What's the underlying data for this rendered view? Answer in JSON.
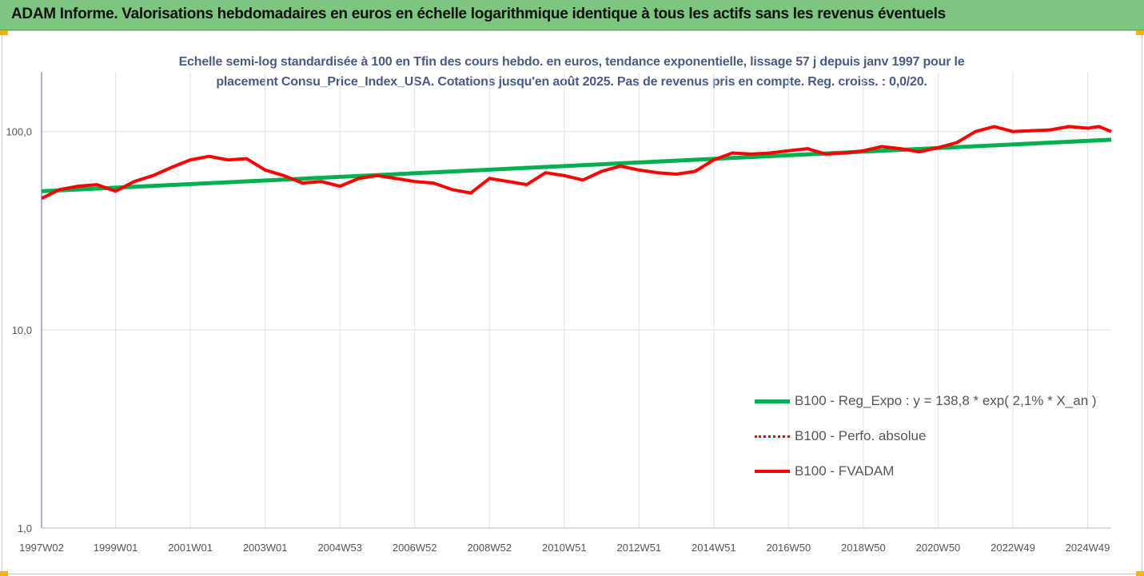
{
  "banner": {
    "title": "ADAM Informe. Valorisations hebdomadaires en euros en échelle logarithmique identique à tous les actifs sans les revenus éventuels"
  },
  "colors": {
    "banner": "#7dc67f",
    "corner": "#f2b705",
    "trend": "#00b050",
    "fvadam": "#ff0000",
    "title": "#4a5a80",
    "grid": "#dde3ee",
    "axis": "#4472c4"
  },
  "chart_data": {
    "type": "line",
    "title_lines": [
      "Echelle semi-log standardisée à 100 en Tfin des cours hebdo. en euros, tendance exponentielle, lissage 57 j depuis janv 1997 pour le",
      "placement Consu_Price_Index_USA. Cotations jusqu'en août 2025. Pas de revenus pris en compte. Reg. croiss. : 0,0/20."
    ],
    "y_scale": "log",
    "ylim": [
      1,
      200
    ],
    "y_ticks": [
      {
        "value": 1,
        "label": "1,0"
      },
      {
        "value": 10,
        "label": "10,0"
      },
      {
        "value": 100,
        "label": "100,0"
      }
    ],
    "xlim": [
      1997.02,
      2025.63
    ],
    "x_ticks": [
      {
        "value": 1997.02,
        "label": "1997W02"
      },
      {
        "value": 1999.0,
        "label": "1999W01"
      },
      {
        "value": 2001.0,
        "label": "2001W01"
      },
      {
        "value": 2003.0,
        "label": "2003W01"
      },
      {
        "value": 2005.0,
        "label": "2004W53"
      },
      {
        "value": 2007.0,
        "label": "2006W52"
      },
      {
        "value": 2009.0,
        "label": "2008W52"
      },
      {
        "value": 2011.0,
        "label": "2010W51"
      },
      {
        "value": 2013.0,
        "label": "2012W51"
      },
      {
        "value": 2015.0,
        "label": "2014W51"
      },
      {
        "value": 2017.0,
        "label": "2016W50"
      },
      {
        "value": 2019.0,
        "label": "2018W50"
      },
      {
        "value": 2021.0,
        "label": "2020W50"
      },
      {
        "value": 2023.0,
        "label": "2022W49"
      },
      {
        "value": 2025.0,
        "label": "2024W49"
      }
    ],
    "legend_position": "bottom-right",
    "series": [
      {
        "name": "B100 - Reg_Expo : y = 138,8 * exp( 2,1% *  X_an )",
        "style": "solid-green",
        "x": [
          1997.02,
          2025.63
        ],
        "y": [
          50,
          91
        ]
      },
      {
        "name": "B100 - Perfo. absolue",
        "style": "dotted-red",
        "x": [],
        "y": []
      },
      {
        "name": "B100 - FVADAM",
        "style": "solid-red",
        "x": [
          1997.02,
          1997.5,
          1998.0,
          1998.5,
          1999.0,
          1999.5,
          2000.0,
          2000.5,
          2001.0,
          2001.5,
          2002.0,
          2002.5,
          2003.0,
          2003.5,
          2004.0,
          2004.5,
          2005.0,
          2005.5,
          2006.0,
          2006.5,
          2007.0,
          2007.5,
          2008.0,
          2008.5,
          2009.0,
          2009.5,
          2010.0,
          2010.5,
          2011.0,
          2011.5,
          2012.0,
          2012.5,
          2013.0,
          2013.5,
          2014.0,
          2014.5,
          2015.0,
          2015.5,
          2016.0,
          2016.5,
          2017.0,
          2017.5,
          2018.0,
          2018.5,
          2019.0,
          2019.5,
          2020.0,
          2020.5,
          2021.0,
          2021.5,
          2022.0,
          2022.5,
          2023.0,
          2023.5,
          2024.0,
          2024.5,
          2025.0,
          2025.3,
          2025.63
        ],
        "y": [
          46,
          51,
          53,
          54,
          50,
          56,
          60,
          66,
          72,
          75,
          72,
          73,
          64,
          60,
          55,
          56,
          53,
          58,
          60,
          58,
          56,
          55,
          51,
          49,
          58,
          56,
          54,
          62,
          60,
          57,
          63,
          67,
          64,
          62,
          61,
          63,
          72,
          78,
          77,
          78,
          80,
          82,
          77,
          78,
          80,
          84,
          82,
          79,
          83,
          88,
          100,
          106,
          100,
          101,
          102,
          106,
          104,
          106,
          100
        ]
      }
    ]
  }
}
